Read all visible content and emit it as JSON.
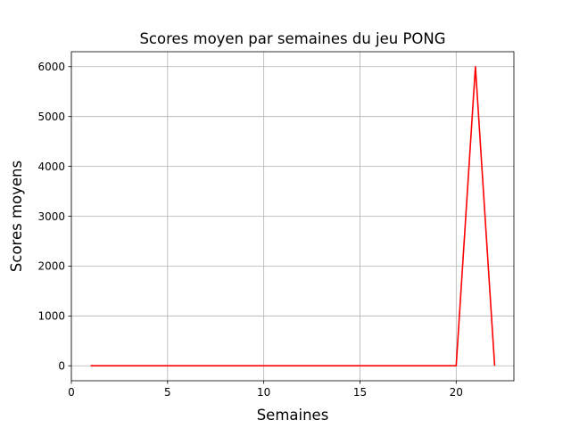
{
  "chart_data": {
    "type": "line",
    "title": "Scores moyen par semaines du jeu PONG",
    "xlabel": "Semaines",
    "ylabel": "Scores moyens",
    "xlim": [
      0,
      23
    ],
    "ylim": [
      -300,
      6300
    ],
    "xticks": [
      0,
      5,
      10,
      15,
      20
    ],
    "yticks": [
      0,
      1000,
      2000,
      3000,
      4000,
      5000,
      6000
    ],
    "grid": true,
    "series": [
      {
        "name": "Scores moyens",
        "color": "#ff0000",
        "x": [
          1,
          2,
          3,
          4,
          5,
          6,
          7,
          8,
          9,
          10,
          11,
          12,
          13,
          14,
          15,
          16,
          17,
          18,
          19,
          20,
          21,
          22
        ],
        "y": [
          0,
          0,
          0,
          0,
          0,
          0,
          0,
          0,
          0,
          0,
          0,
          0,
          0,
          0,
          0,
          0,
          0,
          0,
          0,
          0,
          6000,
          0
        ]
      }
    ]
  }
}
